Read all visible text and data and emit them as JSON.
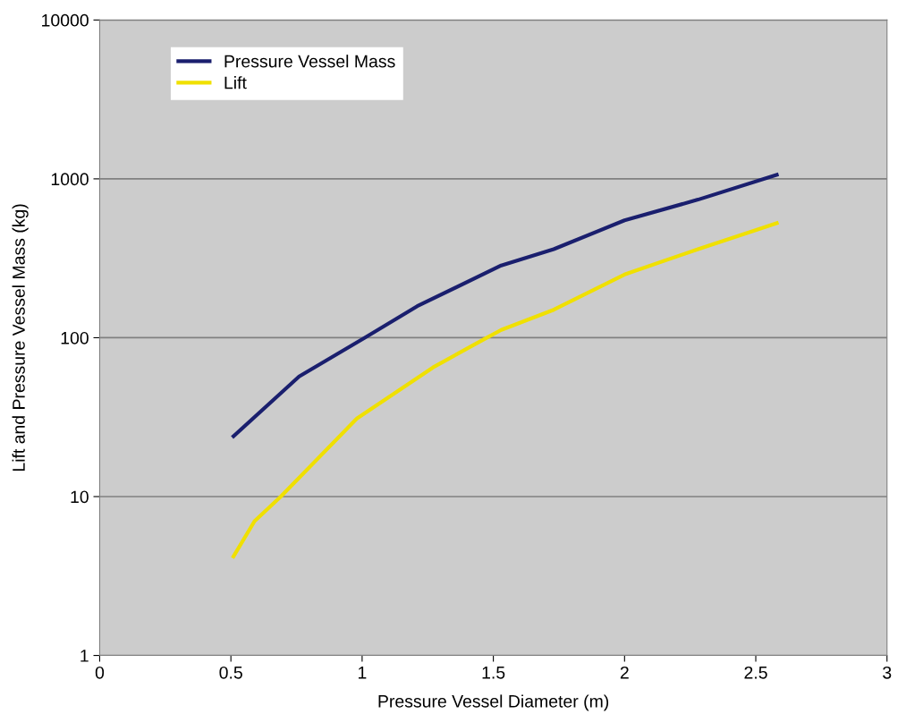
{
  "chart_data": {
    "type": "line",
    "xlabel": "Pressure Vessel Diameter (m)",
    "ylabel": "Lift and Pressure Vessel Mass (kg)",
    "series": [
      {
        "name": "Pressure Vessel Mass",
        "color": "#1a1f6e",
        "x": [
          0.51,
          0.76,
          1.01,
          1.21,
          1.53,
          1.73,
          2.0,
          2.28,
          2.58
        ],
        "values": [
          24,
          57,
          100,
          158,
          285,
          361,
          548,
          740,
          1060
        ]
      },
      {
        "name": "Lift",
        "color": "#f0e000",
        "x": [
          0.51,
          0.59,
          0.69,
          0.98,
          1.27,
          1.46,
          1.53,
          1.73,
          2.0,
          2.28,
          2.58
        ],
        "values": [
          4.2,
          7,
          10,
          31,
          65,
          97,
          112,
          150,
          250,
          361,
          526
        ]
      }
    ],
    "log": "y",
    "xlim": [
      0,
      3
    ],
    "xticks": [
      0,
      0.5,
      1,
      1.5,
      2,
      2.5,
      3
    ],
    "ylim": [
      1,
      10000
    ],
    "yticks": [
      1,
      10,
      100,
      1000,
      10000
    ],
    "grid": "y",
    "legend": "top left",
    "marker": "none",
    "line_style": "solid"
  }
}
